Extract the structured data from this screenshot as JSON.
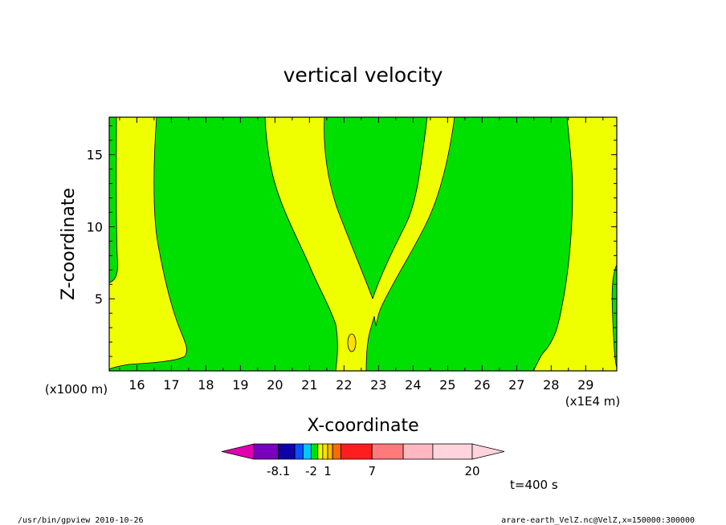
{
  "chart_data": {
    "type": "heatmap",
    "title": "vertical velocity",
    "xlabel": "X-coordinate",
    "ylabel": "Z-coordinate",
    "x_range": [
      15.2,
      29.9
    ],
    "y_range": [
      0,
      17.6
    ],
    "x_ticks": [
      "16",
      "17",
      "18",
      "19",
      "20",
      "21",
      "22",
      "23",
      "24",
      "25",
      "26",
      "27",
      "28",
      "29"
    ],
    "y_ticks": [
      "5",
      "10",
      "15"
    ],
    "x_unit_left": "(x1000 m)",
    "x_unit_right": "(x1E4 m)",
    "colorbar": {
      "labels": [
        "-8.1",
        "-2",
        "1",
        "7",
        "20"
      ],
      "colors": [
        "#e000b0",
        "#7a00c0",
        "#1000a8",
        "#0a50ff",
        "#00c8ff",
        "#00e000",
        "#f0ff00",
        "#ffe000",
        "#ffb800",
        "#ff6a00",
        "#ff1e1e",
        "#ff7a7a",
        "#ffb8c0",
        "#ffd4dc"
      ]
    },
    "region_colors": {
      "background": "#00e000",
      "positive": "#f0ff00",
      "contour": "#000000"
    },
    "time_label": "t=400 s"
  },
  "footer": {
    "left": "/usr/bin/gpview   2010-10-26",
    "right": "arare-earth_VelZ.nc@VelZ,x=150000:300000"
  }
}
